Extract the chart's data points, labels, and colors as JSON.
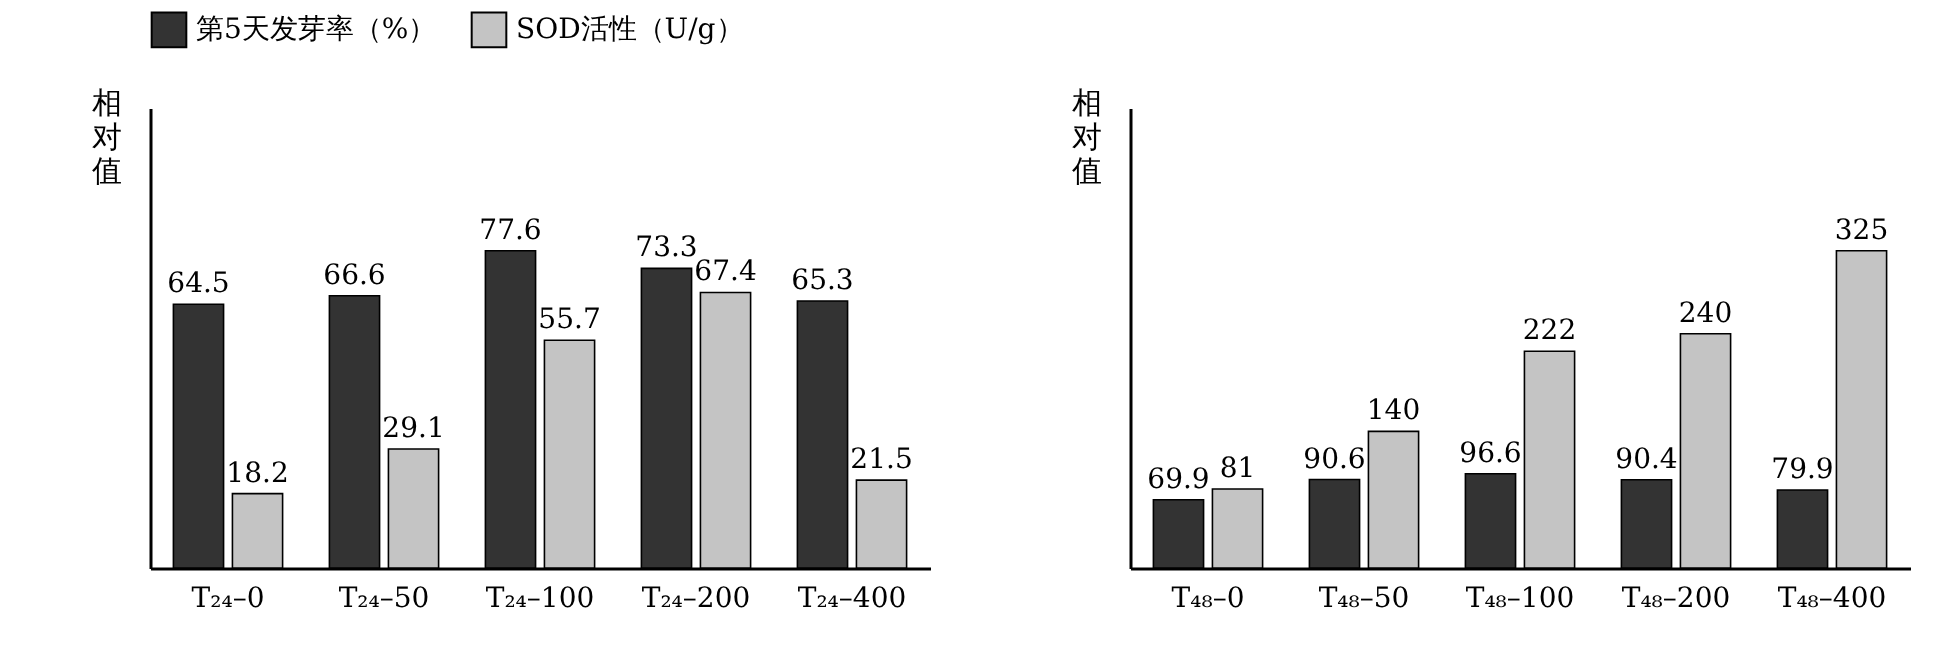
{
  "chart_data": [
    {
      "type": "bar",
      "ylabel": "相对值",
      "categories": [
        "T₂₄–0",
        "T₂₄–50",
        "T₂₄–100",
        "T₂₄–200",
        "T₂₄–400"
      ],
      "relative": false,
      "data_labels": true,
      "legend": "top",
      "grid": false,
      "series": [
        {
          "name": "第5天发芽率（%）",
          "color": "#333333",
          "values": [
            64.5,
            66.6,
            77.6,
            73.3,
            65.3
          ]
        },
        {
          "name": "SOD活性（U/g）",
          "color": "#c4c4c4",
          "values": [
            18.2,
            29.1,
            55.7,
            67.4,
            21.5
          ]
        }
      ]
    },
    {
      "type": "bar",
      "ylabel": "相对值",
      "categories": [
        "T₄₈–0",
        "T₄₈–50",
        "T₄₈–100",
        "T₄₈–200",
        "T₄₈–400"
      ],
      "relative": false,
      "data_labels": true,
      "legend": "top",
      "grid": false,
      "series": [
        {
          "name": "第5天发芽率（%）",
          "color": "#333333",
          "values": [
            69.9,
            90.6,
            96.6,
            90.4,
            79.9
          ]
        },
        {
          "name": "SOD活性（U/g）",
          "color": "#c4c4c4",
          "values": [
            81,
            140,
            222,
            240,
            325
          ]
        }
      ]
    }
  ]
}
